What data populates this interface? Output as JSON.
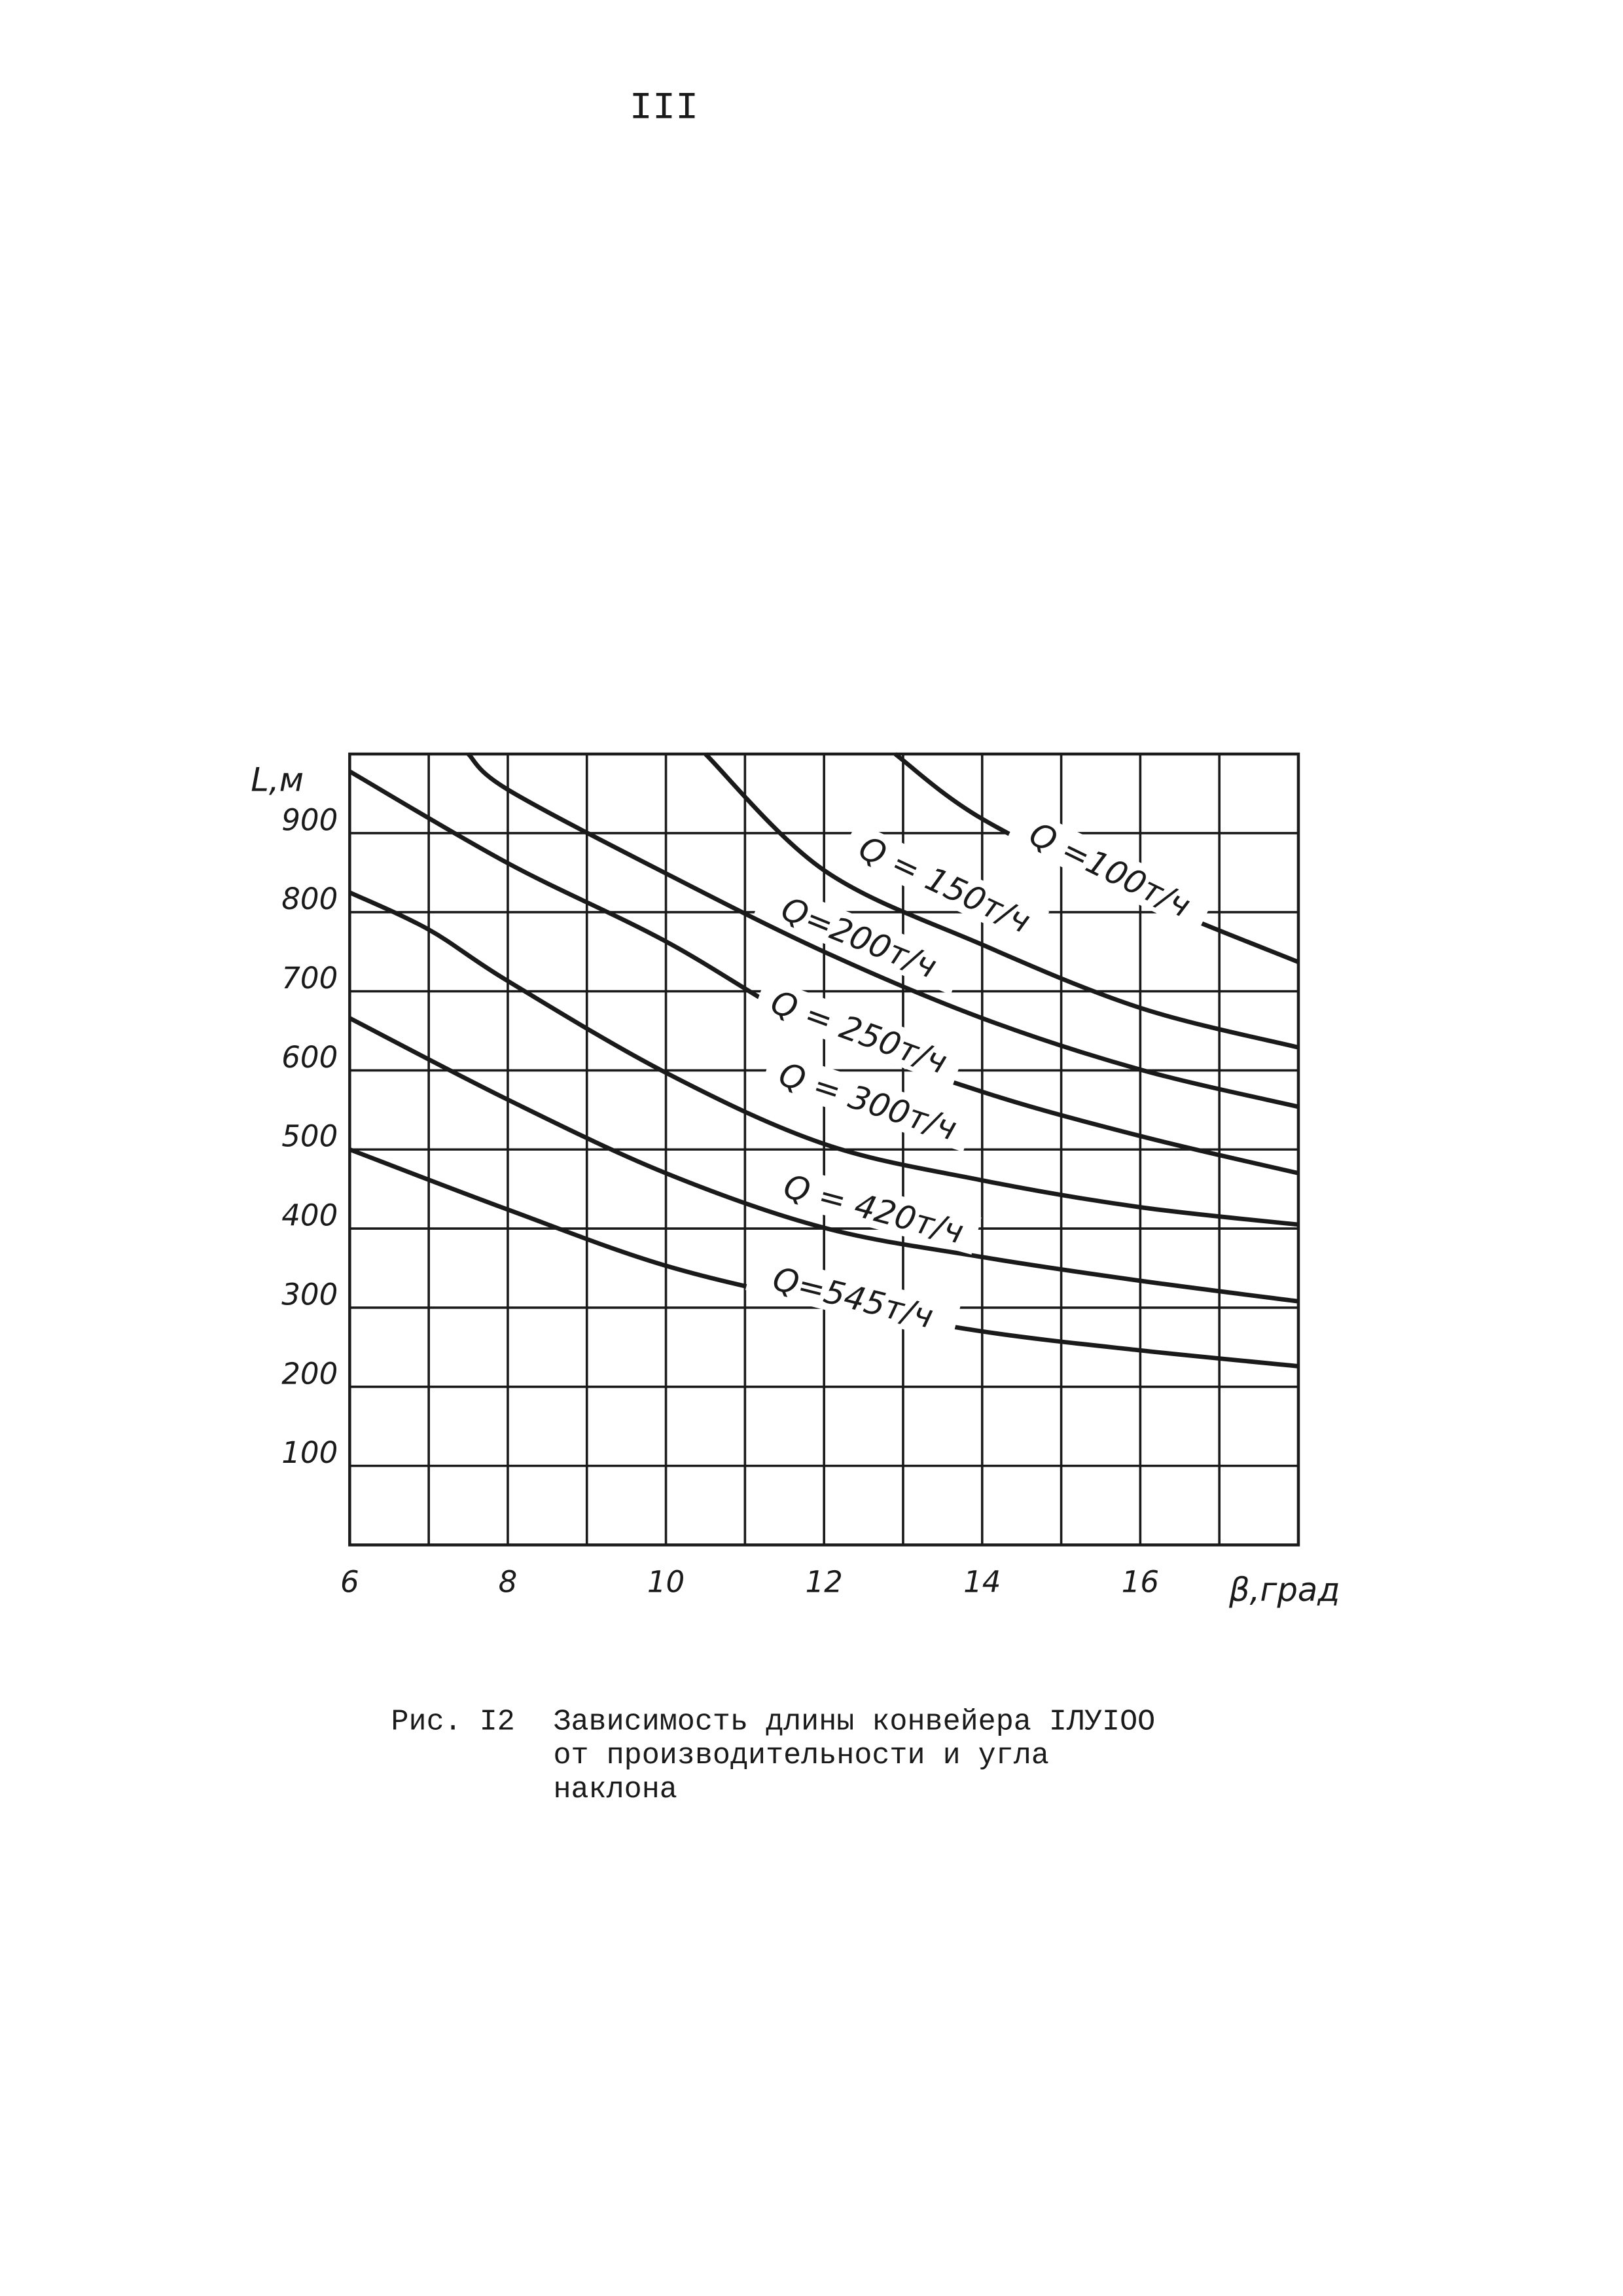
{
  "page_number": "III",
  "chart_data": {
    "type": "line",
    "x_label": "β,град",
    "y_label": "L,м",
    "xlim": [
      6,
      18
    ],
    "ylim": [
      0,
      1000
    ],
    "xticks": [
      6,
      8,
      10,
      12,
      14,
      16
    ],
    "x_minor_ticks": [
      7,
      9,
      11,
      13,
      15,
      17
    ],
    "yticks": [
      100,
      200,
      300,
      400,
      500,
      600,
      700,
      800,
      900
    ],
    "grid": true,
    "color": "#1a1a1a",
    "series": [
      {
        "name": "Q =100т/ч",
        "x": [
          12.9,
          14,
          16,
          18
        ],
        "values": [
          1000,
          918,
          819,
          737
        ]
      },
      {
        "name": "Q = 150т/ч",
        "x": [
          10.5,
          12,
          14,
          16,
          18
        ],
        "values": [
          1000,
          853,
          759,
          679,
          629
        ]
      },
      {
        "name": "Q=200т/ч",
        "x": [
          7.5,
          8,
          10,
          12,
          14,
          16,
          18
        ],
        "values": [
          1000,
          955,
          849,
          750,
          666,
          601,
          554
        ]
      },
      {
        "name": "Q = 250т/ч",
        "x": [
          6,
          8,
          10,
          12,
          14,
          16,
          18
        ],
        "values": [
          978,
          862,
          763,
          647,
          573,
          517,
          470
        ]
      },
      {
        "name": "Q = 300т/ч",
        "x": [
          6,
          7,
          8,
          10,
          12,
          14,
          16,
          18
        ],
        "values": [
          825,
          778,
          713,
          597,
          507,
          461,
          427,
          405
        ]
      },
      {
        "name": "Q = 420т/ч",
        "x": [
          6,
          8,
          10,
          12,
          14,
          16,
          18
        ],
        "values": [
          666,
          563,
          470,
          401,
          364,
          334,
          308
        ]
      },
      {
        "name": "Q=545т/ч",
        "x": [
          6,
          8,
          10,
          12,
          14,
          16,
          18
        ],
        "values": [
          500,
          424,
          353,
          306,
          270,
          246,
          226
        ]
      }
    ]
  },
  "caption": {
    "label": "Рис. I2",
    "lines": [
      "Зависимость длины конвейера IЛУIOO",
      "от производительности и угла",
      "наклона"
    ]
  }
}
